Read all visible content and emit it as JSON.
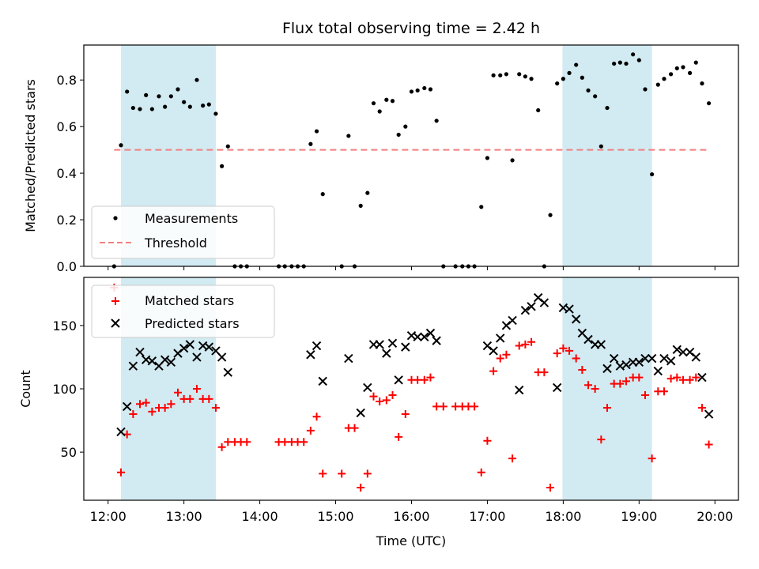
{
  "chart_data": [
    {
      "panel": "top",
      "type": "scatter",
      "title": "Flux total observing time = 2.42 h",
      "xlabel": "",
      "ylabel": "Matched/Predicted stars",
      "ylim": [
        0,
        0.95
      ],
      "yticks": [
        0.0,
        0.2,
        0.4,
        0.6,
        0.8
      ],
      "ytick_labels": [
        "0.0",
        "0.2",
        "0.4",
        "0.6",
        "0.8"
      ],
      "x_unit": "hours UTC",
      "xlim": [
        11.68,
        20.31
      ],
      "shaded_spans": [
        [
          12.17,
          13.42
        ],
        [
          17.99,
          19.17
        ]
      ],
      "shade_color": "#add8e6",
      "legend_position": "lower-left",
      "series": [
        {
          "name": "Measurements",
          "marker": "dot",
          "color": "#000000",
          "x": [
            12.08,
            12.17,
            12.25,
            12.33,
            12.42,
            12.5,
            12.58,
            12.67,
            12.75,
            12.83,
            12.92,
            13.0,
            13.08,
            13.17,
            13.25,
            13.33,
            13.42,
            13.5,
            13.58,
            13.67,
            13.75,
            13.83,
            14.25,
            14.33,
            14.42,
            14.5,
            14.58,
            14.67,
            14.75,
            14.83,
            15.08,
            15.17,
            15.25,
            15.33,
            15.42,
            15.5,
            15.58,
            15.67,
            15.75,
            15.83,
            15.92,
            16.0,
            16.08,
            16.17,
            16.25,
            16.33,
            16.42,
            16.58,
            16.67,
            16.75,
            16.83,
            16.92,
            17.0,
            17.08,
            17.17,
            17.25,
            17.33,
            17.42,
            17.5,
            17.58,
            17.67,
            17.75,
            17.83,
            17.92,
            18.0,
            18.08,
            18.17,
            18.25,
            18.33,
            18.42,
            18.5,
            18.58,
            18.67,
            18.75,
            18.83,
            18.92,
            19.0,
            19.08,
            19.17,
            19.25,
            19.33,
            19.42,
            19.5,
            19.58,
            19.67,
            19.75,
            19.83,
            19.92
          ],
          "y": [
            0,
            0.52,
            0.75,
            0.68,
            0.675,
            0.735,
            0.675,
            0.73,
            0.685,
            0.73,
            0.76,
            0.705,
            0.685,
            0.8,
            0.69,
            0.695,
            0.655,
            0.43,
            0.515,
            0,
            0,
            0,
            0,
            0,
            0,
            0,
            0,
            0.525,
            0.58,
            0.31,
            0,
            0.56,
            0,
            0.26,
            0.315,
            0.7,
            0.665,
            0.715,
            0.71,
            0.565,
            0.6,
            0.75,
            0.755,
            0.765,
            0.76,
            0.625,
            0,
            0,
            0,
            0,
            0,
            0.255,
            0.465,
            0.82,
            0.82,
            0.825,
            0.455,
            0.825,
            0.815,
            0.805,
            0.67,
            0,
            0.22,
            0.785,
            0.805,
            0.83,
            0.865,
            0.81,
            0.755,
            0.73,
            0.515,
            0.68,
            0.87,
            0.875,
            0.87,
            0.91,
            0.885,
            0.76,
            0.395,
            0.78,
            0.805,
            0.825,
            0.85,
            0.855,
            0.83,
            0.875,
            0.785,
            0.7
          ]
        },
        {
          "name": "Threshold",
          "marker": "dashed-line",
          "color": "#f08080",
          "x": [
            12.08,
            19.92
          ],
          "y": [
            0.5,
            0.5
          ]
        }
      ]
    },
    {
      "panel": "bottom",
      "type": "scatter",
      "title": "",
      "xlabel": "Time (UTC)",
      "ylabel": "Count",
      "ylim": [
        12,
        188
      ],
      "yticks": [
        50,
        100,
        150
      ],
      "ytick_labels": [
        "50",
        "100",
        "150"
      ],
      "x_unit": "hours UTC",
      "xlim": [
        11.68,
        20.31
      ],
      "xticks": [
        12,
        13,
        14,
        15,
        16,
        17,
        18,
        19,
        20
      ],
      "xtick_labels": [
        "12:00",
        "13:00",
        "14:00",
        "15:00",
        "16:00",
        "17:00",
        "18:00",
        "19:00",
        "20:00"
      ],
      "shaded_spans": [
        [
          12.17,
          13.42
        ],
        [
          17.99,
          19.17
        ]
      ],
      "shade_color": "#add8e6",
      "legend_position": "upper-left",
      "series": [
        {
          "name": "Matched stars",
          "marker": "plus",
          "color": "#ff0000",
          "x": [
            12.08,
            12.17,
            12.25,
            12.33,
            12.42,
            12.5,
            12.58,
            12.67,
            12.75,
            12.83,
            12.92,
            13.0,
            13.08,
            13.17,
            13.25,
            13.33,
            13.42,
            13.5,
            13.58,
            13.67,
            13.75,
            13.83,
            14.25,
            14.33,
            14.42,
            14.5,
            14.58,
            14.67,
            14.75,
            14.83,
            15.08,
            15.17,
            15.25,
            15.33,
            15.42,
            15.5,
            15.58,
            15.67,
            15.75,
            15.83,
            15.92,
            16.0,
            16.08,
            16.17,
            16.25,
            16.33,
            16.42,
            16.58,
            16.67,
            16.75,
            16.83,
            16.92,
            17.0,
            17.08,
            17.17,
            17.25,
            17.33,
            17.42,
            17.5,
            17.58,
            17.67,
            17.75,
            17.83,
            17.92,
            18.0,
            18.08,
            18.17,
            18.25,
            18.33,
            18.42,
            18.5,
            18.58,
            18.67,
            18.75,
            18.83,
            18.92,
            19.0,
            19.08,
            19.17,
            19.25,
            19.33,
            19.42,
            19.5,
            19.58,
            19.67,
            19.75,
            19.83,
            19.92
          ],
          "y": [
            180,
            34,
            64,
            80,
            88,
            89,
            82,
            85,
            85,
            88,
            97,
            92,
            92,
            100,
            92,
            92,
            85,
            54,
            58,
            58,
            58,
            58,
            58,
            58,
            58,
            58,
            58,
            67,
            78,
            33,
            33,
            69,
            69,
            22,
            33,
            94,
            90,
            91,
            95,
            62,
            80,
            107,
            107,
            107,
            109,
            86,
            86,
            86,
            86,
            86,
            86,
            34,
            59,
            114,
            124,
            127,
            45,
            134,
            135,
            137,
            113,
            113,
            22,
            128,
            132,
            130,
            124,
            115,
            103,
            100,
            60,
            85,
            104,
            104,
            106,
            109,
            109,
            95,
            45,
            98,
            98,
            108,
            109,
            107,
            107,
            109,
            85,
            56
          ]
        },
        {
          "name": "Predicted stars",
          "marker": "x",
          "color": "#000000",
          "x": [
            12.17,
            12.25,
            12.33,
            12.42,
            12.5,
            12.58,
            12.67,
            12.75,
            12.83,
            12.92,
            13.0,
            13.08,
            13.17,
            13.25,
            13.33,
            13.42,
            13.5,
            13.58,
            14.67,
            14.75,
            14.83,
            15.17,
            15.33,
            15.42,
            15.5,
            15.58,
            15.67,
            15.75,
            15.83,
            15.92,
            16.0,
            16.08,
            16.17,
            16.25,
            16.33,
            17.0,
            17.08,
            17.17,
            17.25,
            17.33,
            17.42,
            17.5,
            17.58,
            17.67,
            17.75,
            17.92,
            18.0,
            18.08,
            18.17,
            18.25,
            18.33,
            18.42,
            18.5,
            18.58,
            18.67,
            18.75,
            18.83,
            18.92,
            19.0,
            19.08,
            19.17,
            19.25,
            19.33,
            19.42,
            19.5,
            19.58,
            19.67,
            19.75,
            19.83,
            19.92
          ],
          "y": [
            66,
            86,
            118,
            129,
            123,
            122,
            118,
            123,
            121,
            128,
            132,
            135,
            125,
            134,
            133,
            130,
            125,
            113,
            127,
            134,
            106,
            124,
            81,
            101,
            135,
            135,
            128,
            136,
            107,
            133,
            142,
            141,
            141,
            144,
            138,
            134,
            130,
            140,
            150,
            154,
            99,
            162,
            165,
            172,
            168,
            101,
            164,
            163,
            155,
            144,
            139,
            135,
            135,
            116,
            124,
            118,
            119,
            121,
            121,
            124,
            124,
            114,
            124,
            122,
            131,
            129,
            129,
            125,
            109,
            80
          ]
        }
      ]
    }
  ]
}
